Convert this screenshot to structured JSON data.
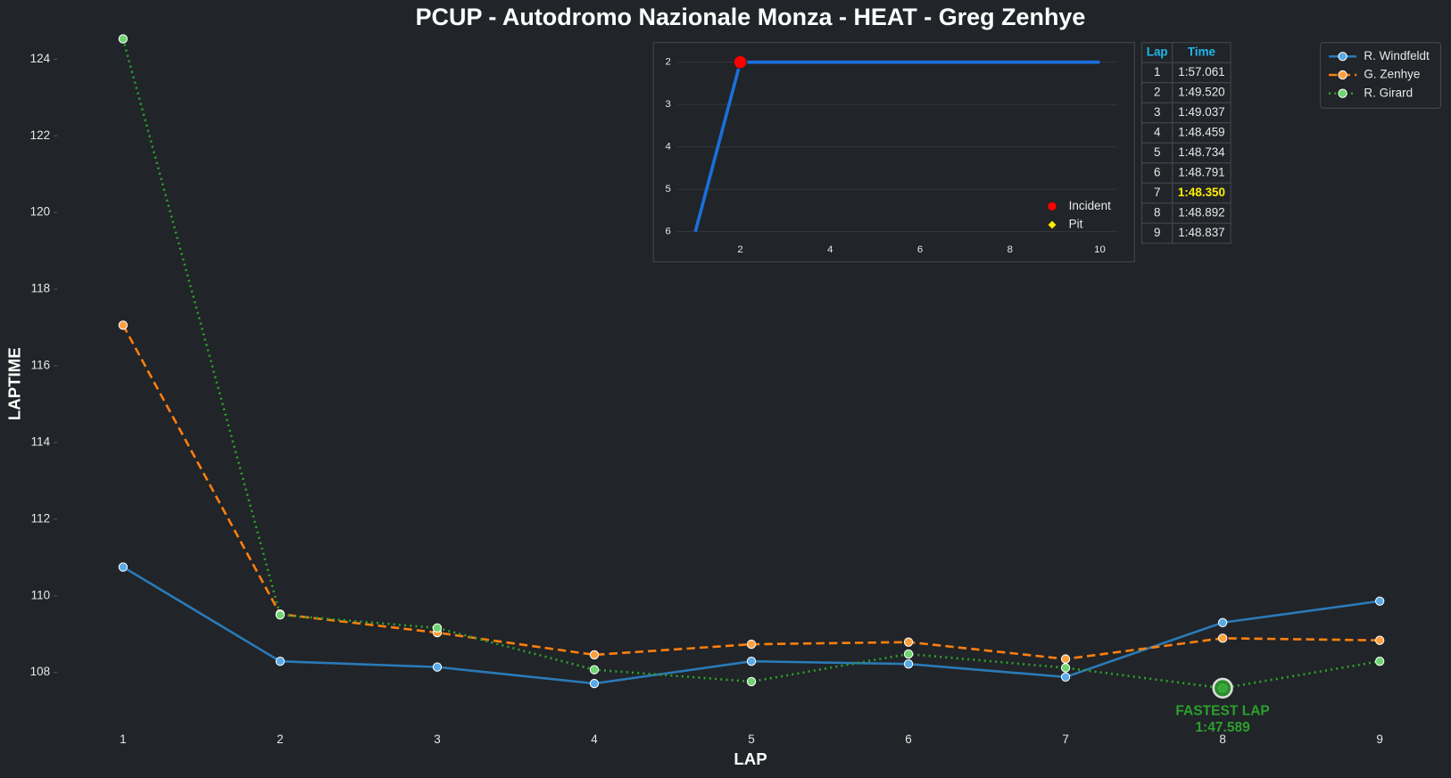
{
  "chart_data": [
    {
      "type": "line",
      "title": "PCUP - Autodromo Nazionale Monza - HEAT - Greg Zenhye",
      "xlabel": "LAP",
      "ylabel": "LAPTIME",
      "x": [
        1,
        2,
        3,
        4,
        5,
        6,
        7,
        8,
        9
      ],
      "series": [
        {
          "name": "R. Windfeldt",
          "color": "#2a7ab8",
          "marker_color": "#5aaae8",
          "linestyle": "solid",
          "values": [
            110.75,
            108.29,
            108.14,
            107.71,
            108.29,
            108.22,
            107.88,
            109.3,
            109.86
          ]
        },
        {
          "name": "G. Zenhye",
          "color": "#ff7f0e",
          "marker_color": "#ffa040",
          "linestyle": "dashed",
          "values": [
            117.061,
            109.52,
            109.037,
            108.459,
            108.734,
            108.791,
            108.35,
            108.892,
            108.837
          ]
        },
        {
          "name": "R. Girard",
          "color": "#2ca02c",
          "marker_color": "#6fd46f",
          "linestyle": "dotted",
          "values": [
            124.53,
            109.5,
            109.16,
            108.07,
            107.76,
            108.48,
            108.12,
            107.589,
            108.29
          ]
        }
      ],
      "xlim": [
        0.6,
        9.4
      ],
      "ylim": [
        106.5,
        124.7
      ],
      "xticks": [
        1,
        2,
        3,
        4,
        5,
        6,
        7,
        8,
        9
      ],
      "yticks": [
        108,
        110,
        112,
        114,
        116,
        118,
        120,
        122,
        124
      ],
      "grid": false,
      "legend": "upper right",
      "annotation": {
        "x": 8,
        "lines": [
          "FASTEST LAP",
          "1:47.589"
        ],
        "color": "#2ca02c"
      }
    },
    {
      "type": "line",
      "x": [
        1,
        2,
        3,
        4,
        5,
        6,
        7,
        8,
        9,
        10
      ],
      "series": [
        {
          "color": "#1a6fdc",
          "values": [
            6,
            2,
            2,
            2,
            2,
            2,
            2,
            2,
            2,
            2
          ]
        }
      ],
      "xlim": [
        0.6,
        10.4
      ],
      "ylim": [
        1.8,
        6.1
      ],
      "invert_y": true,
      "xticks": [
        2,
        4,
        6,
        8,
        10
      ],
      "yticks": [
        2,
        3,
        4,
        5,
        6
      ],
      "grid": true,
      "markers": [
        {
          "label": "Incident",
          "color": "#ff0000",
          "shape": "circle",
          "x": [
            2
          ],
          "y": [
            2
          ]
        },
        {
          "label": "Pit",
          "color": "#ffee00",
          "shape": "diamond",
          "x": [],
          "y": []
        }
      ]
    }
  ],
  "table": {
    "header": [
      "Lap",
      "Time"
    ],
    "rows": [
      [
        "1",
        "1:57.061"
      ],
      [
        "2",
        "1:49.520"
      ],
      [
        "3",
        "1:49.037"
      ],
      [
        "4",
        "1:48.459"
      ],
      [
        "5",
        "1:48.734"
      ],
      [
        "6",
        "1:48.791"
      ],
      [
        "7",
        "1:48.350"
      ],
      [
        "8",
        "1:48.892"
      ],
      [
        "9",
        "1:48.837"
      ]
    ]
  }
}
